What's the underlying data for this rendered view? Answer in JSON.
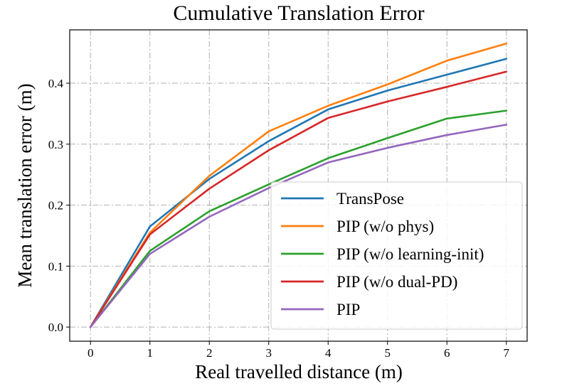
{
  "chart_data": {
    "type": "line",
    "title": "Cumulative Translation Error",
    "xlabel": "Real travelled distance (m)",
    "ylabel": "Mean translation error (m)",
    "x": [
      0,
      1,
      2,
      3,
      4,
      5,
      6,
      7
    ],
    "xticks": [
      "0",
      "1",
      "2",
      "3",
      "4",
      "5",
      "6",
      "7"
    ],
    "yticks": [
      "0.0",
      "0.1",
      "0.2",
      "0.3",
      "0.4"
    ],
    "xlim": [
      -0.35,
      7.35
    ],
    "ylim": [
      -0.0232,
      0.4875
    ],
    "grid": true,
    "legend_position": "lower-right",
    "series": [
      {
        "name": "TransPose",
        "color": "#1f77b4",
        "values": [
          0.0,
          0.165,
          0.243,
          0.305,
          0.357,
          0.388,
          0.414,
          0.44
        ]
      },
      {
        "name": "PIP (w/o phys)",
        "color": "#ff7f0e",
        "values": [
          0.0,
          0.155,
          0.248,
          0.321,
          0.363,
          0.398,
          0.437,
          0.465
        ]
      },
      {
        "name": "PIP (w/o learning-init)",
        "color": "#2ca02c",
        "values": [
          0.0,
          0.125,
          0.19,
          0.234,
          0.277,
          0.31,
          0.342,
          0.355
        ]
      },
      {
        "name": "PIP (w/o dual-PD)",
        "color": "#d62728",
        "values": [
          0.0,
          0.152,
          0.227,
          0.29,
          0.343,
          0.37,
          0.394,
          0.419
        ]
      },
      {
        "name": "PIP",
        "color": "#9467bd",
        "values": [
          0.0,
          0.12,
          0.181,
          0.228,
          0.27,
          0.294,
          0.315,
          0.332
        ]
      }
    ]
  }
}
